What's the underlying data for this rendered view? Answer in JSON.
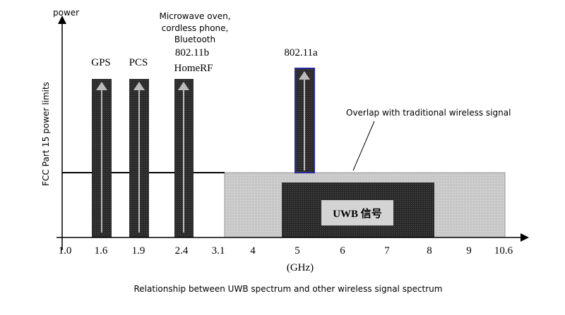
{
  "axis": {
    "y_label": "power",
    "y_title": "FCC Part 15 power limits",
    "x_unit": "(GHz)",
    "ticks": [
      "1.0",
      "1.6",
      "1.9",
      "2.4",
      "3.1",
      "4",
      "5",
      "6",
      "7",
      "8",
      "9",
      "10.6"
    ]
  },
  "bands": {
    "gps": "GPS",
    "pcs": "PCS",
    "microwave": [
      "Microwave oven,",
      "cordless phone,",
      "Bluetooth"
    ],
    "b80211": [
      "802.11b",
      "HomeRF"
    ],
    "a80211": "802.11a",
    "uwb": "UWB 信号"
  },
  "annotation": "Overlap with traditional wireless signal",
  "caption": "Relationship between UWB spectrum and other wireless signal spectrum"
}
